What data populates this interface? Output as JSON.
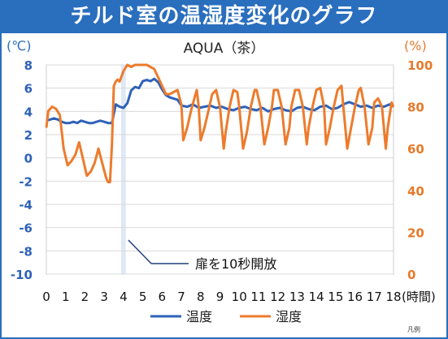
{
  "header": {
    "title": "チルド室の温湿度変化のグラフ",
    "legend_note": "凡例"
  },
  "chart_data": {
    "type": "line",
    "title": "AQUA（茶）",
    "xlabel": "(時間)",
    "left_unit": "(℃)",
    "right_unit": "(%)",
    "xlim": [
      0,
      18
    ],
    "ylim_left": [
      -10,
      8
    ],
    "ylim_right": [
      0,
      100
    ],
    "x_ticks": [
      "0",
      "1",
      "2",
      "3",
      "4",
      "5",
      "6",
      "7",
      "8",
      "9",
      "10",
      "11",
      "12",
      "13",
      "14",
      "15",
      "16",
      "17",
      "18"
    ],
    "y_left_ticks": [
      "8",
      "6",
      "4",
      "2",
      "0",
      "-2",
      "-4",
      "-6",
      "-8",
      "-10"
    ],
    "y_right_ticks": [
      "100",
      "80",
      "60",
      "40",
      "20",
      "0"
    ],
    "door_open": {
      "x": 4.0,
      "label": "扉を10秒開放"
    },
    "colors": {
      "temperature": "#2e62b8",
      "humidity": "#ed7b2c",
      "header": "#2a6ebe",
      "highlight": "#dfe8f5"
    },
    "series": [
      {
        "name": "温度",
        "axis": "left",
        "x": [
          0,
          0.2,
          0.4,
          0.6,
          0.8,
          1.0,
          1.2,
          1.4,
          1.6,
          1.8,
          2.0,
          2.2,
          2.4,
          2.6,
          2.8,
          3.0,
          3.2,
          3.4,
          3.6,
          3.8,
          4.0,
          4.2,
          4.4,
          4.6,
          4.8,
          5.0,
          5.2,
          5.4,
          5.6,
          5.8,
          6.0,
          6.2,
          6.4,
          6.6,
          6.8,
          7.0,
          7.3,
          7.6,
          7.9,
          8.2,
          8.5,
          8.8,
          9.1,
          9.4,
          9.7,
          10.0,
          10.3,
          10.6,
          10.9,
          11.2,
          11.5,
          11.8,
          12.1,
          12.4,
          12.7,
          13.0,
          13.3,
          13.6,
          13.9,
          14.2,
          14.5,
          14.8,
          15.1,
          15.4,
          15.7,
          16.0,
          16.3,
          16.6,
          16.9,
          17.2,
          17.5,
          17.8,
          18.0
        ],
        "values": [
          3.2,
          3.3,
          3.4,
          3.3,
          3.1,
          3.0,
          3.0,
          3.1,
          3.0,
          3.2,
          3.1,
          3.0,
          3.0,
          3.1,
          3.2,
          3.1,
          3.0,
          3.0,
          4.6,
          4.4,
          4.3,
          4.7,
          5.8,
          6.1,
          6.0,
          6.6,
          6.7,
          6.6,
          6.8,
          6.5,
          5.9,
          5.4,
          5.2,
          5.1,
          5.0,
          4.5,
          4.4,
          4.6,
          4.3,
          4.4,
          4.5,
          4.3,
          4.4,
          4.2,
          4.1,
          4.3,
          4.4,
          4.2,
          4.1,
          4.3,
          4.0,
          4.2,
          4.3,
          4.1,
          4.0,
          4.3,
          4.4,
          4.2,
          4.1,
          4.4,
          4.5,
          4.2,
          4.3,
          4.6,
          4.8,
          4.6,
          4.4,
          4.5,
          4.3,
          4.5,
          4.4,
          4.6,
          4.4
        ]
      },
      {
        "name": "湿度",
        "axis": "right",
        "x": [
          0,
          0.1,
          0.3,
          0.5,
          0.7,
          0.9,
          1.1,
          1.3,
          1.5,
          1.7,
          1.9,
          2.1,
          2.3,
          2.5,
          2.7,
          2.9,
          3.1,
          3.2,
          3.3,
          3.4,
          3.5,
          3.6,
          3.7,
          3.8,
          4.0,
          4.2,
          4.4,
          4.6,
          4.8,
          5.0,
          5.2,
          5.4,
          5.6,
          5.8,
          6.0,
          6.2,
          6.4,
          6.6,
          6.8,
          7.0,
          7.1,
          7.3,
          7.5,
          7.7,
          7.8,
          7.9,
          8.0,
          8.2,
          8.4,
          8.6,
          8.8,
          9.0,
          9.2,
          9.3,
          9.5,
          9.7,
          9.9,
          10.0,
          10.2,
          10.4,
          10.6,
          10.8,
          10.9,
          11.1,
          11.3,
          11.5,
          11.7,
          11.8,
          12.0,
          12.2,
          12.4,
          12.6,
          12.7,
          12.9,
          13.1,
          13.3,
          13.5,
          13.6,
          13.8,
          14.0,
          14.2,
          14.4,
          14.5,
          14.7,
          14.9,
          15.1,
          15.3,
          15.4,
          15.6,
          15.8,
          16.0,
          16.2,
          16.3,
          16.5,
          16.7,
          16.9,
          17.0,
          17.2,
          17.4,
          17.6,
          17.7,
          17.9,
          18.0
        ],
        "values": [
          70,
          78,
          80,
          79,
          76,
          60,
          52,
          54,
          57,
          63,
          55,
          47,
          49,
          53,
          60,
          53,
          46,
          44,
          44,
          62,
          90,
          92,
          93,
          92,
          97,
          100,
          99,
          100,
          100,
          100,
          100,
          99,
          98,
          94,
          90,
          86,
          86,
          87,
          88,
          81,
          64,
          70,
          78,
          85,
          88,
          80,
          64,
          70,
          78,
          86,
          88,
          80,
          60,
          68,
          80,
          88,
          87,
          80,
          60,
          68,
          80,
          88,
          88,
          80,
          62,
          70,
          80,
          88,
          88,
          80,
          62,
          70,
          80,
          88,
          88,
          80,
          62,
          70,
          80,
          88,
          89,
          80,
          62,
          70,
          80,
          88,
          90,
          80,
          60,
          70,
          80,
          88,
          89,
          80,
          62,
          70,
          82,
          84,
          80,
          60,
          70,
          82,
          80
        ]
      }
    ]
  }
}
